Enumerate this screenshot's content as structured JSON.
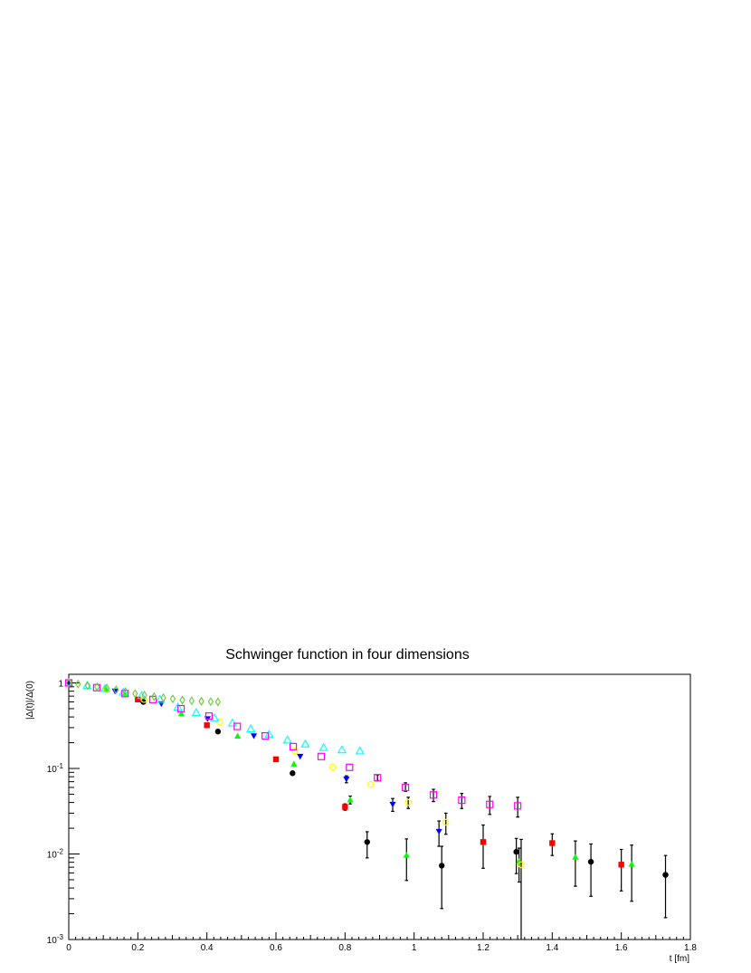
{
  "chart_data": {
    "type": "scatter",
    "title": "Schwinger function in four dimensions",
    "xlabel": "t [fm]",
    "ylabel": "|Δ(t)|/Δ(0)",
    "xlim": [
      0,
      1.8
    ],
    "ylim": [
      0.001,
      1.3
    ],
    "yscale": "log",
    "x_ticks": [
      "0",
      "0.2",
      "0.4",
      "0.6",
      "0.8",
      "1",
      "1.2",
      "1.4",
      "1.6",
      "1.8"
    ],
    "y_ticks": [
      {
        "mant": "1",
        "exp": ""
      },
      {
        "mant": "10",
        "exp": "-1"
      },
      {
        "mant": "10",
        "exp": "-2"
      },
      {
        "mant": "10",
        "exp": "-3"
      }
    ],
    "grid": false,
    "series": [
      {
        "marker": "circle-filled",
        "color": "#000000",
        "points": [
          {
            "x": 0.0,
            "y": 1.0
          },
          {
            "x": 0.216,
            "y": 0.6
          },
          {
            "x": 0.432,
            "y": 0.27
          },
          {
            "x": 0.648,
            "y": 0.088
          },
          {
            "x": 0.864,
            "y": 0.0138,
            "lo": 0.009,
            "hi": 0.0182
          },
          {
            "x": 1.08,
            "y": 0.0073,
            "lo": 0.0023,
            "hi": 0.0123
          },
          {
            "x": 1.296,
            "y": 0.0106,
            "lo": 0.0059,
            "hi": 0.0152
          },
          {
            "x": 1.512,
            "y": 0.0081,
            "lo": 0.0032,
            "hi": 0.0131
          },
          {
            "x": 1.728,
            "y": 0.0057,
            "lo": 0.0018,
            "hi": 0.0096
          }
        ]
      },
      {
        "marker": "square-filled",
        "color": "#ff0000",
        "points": [
          {
            "x": 0.0,
            "y": 1.0
          },
          {
            "x": 0.2,
            "y": 0.64
          },
          {
            "x": 0.4,
            "y": 0.32
          },
          {
            "x": 0.6,
            "y": 0.128
          },
          {
            "x": 0.8,
            "y": 0.0355,
            "lo": 0.0325,
            "hi": 0.0385
          },
          {
            "x": 1.2,
            "y": 0.0138,
            "lo": 0.0068,
            "hi": 0.0218
          },
          {
            "x": 1.4,
            "y": 0.0134,
            "lo": 0.0096,
            "hi": 0.0172
          },
          {
            "x": 1.6,
            "y": 0.0075,
            "lo": 0.0037,
            "hi": 0.0113
          }
        ]
      },
      {
        "marker": "triangle-up-filled",
        "color": "#00ff00",
        "points": [
          {
            "x": 0.0,
            "y": 1.0
          },
          {
            "x": 0.109,
            "y": 0.85
          },
          {
            "x": 0.163,
            "y": 0.75
          },
          {
            "x": 0.326,
            "y": 0.44
          },
          {
            "x": 0.489,
            "y": 0.24
          },
          {
            "x": 0.652,
            "y": 0.113
          },
          {
            "x": 0.815,
            "y": 0.043,
            "lo": 0.0385,
            "hi": 0.0475
          },
          {
            "x": 0.978,
            "y": 0.0097,
            "lo": 0.0049,
            "hi": 0.015
          },
          {
            "x": 1.304,
            "y": 0.0082,
            "lo": 0.0047,
            "hi": 0.0117
          },
          {
            "x": 1.467,
            "y": 0.0092,
            "lo": 0.0042,
            "hi": 0.0142
          },
          {
            "x": 1.63,
            "y": 0.0076,
            "lo": 0.0028,
            "hi": 0.0127
          }
        ]
      },
      {
        "marker": "triangle-down-filled",
        "color": "#0000ff",
        "points": [
          {
            "x": 0.0,
            "y": 1.0
          },
          {
            "x": 0.134,
            "y": 0.8
          },
          {
            "x": 0.268,
            "y": 0.57
          },
          {
            "x": 0.402,
            "y": 0.38
          },
          {
            "x": 0.536,
            "y": 0.24
          },
          {
            "x": 0.67,
            "y": 0.138
          },
          {
            "x": 0.804,
            "y": 0.075,
            "lo": 0.068,
            "hi": 0.082
          },
          {
            "x": 0.938,
            "y": 0.038,
            "lo": 0.0315,
            "hi": 0.0445
          },
          {
            "x": 1.072,
            "y": 0.0183,
            "lo": 0.0123,
            "hi": 0.0243
          }
        ]
      },
      {
        "marker": "circle-open",
        "color": "#ffff00",
        "points": [
          {
            "x": 0.0,
            "y": 1.0
          },
          {
            "x": 0.109,
            "y": 0.84
          },
          {
            "x": 0.218,
            "y": 0.64
          },
          {
            "x": 0.437,
            "y": 0.35
          },
          {
            "x": 0.655,
            "y": 0.16
          },
          {
            "x": 0.764,
            "y": 0.104
          },
          {
            "x": 0.874,
            "y": 0.065
          },
          {
            "x": 0.983,
            "y": 0.04,
            "lo": 0.034,
            "hi": 0.046
          },
          {
            "x": 1.092,
            "y": 0.0235,
            "lo": 0.017,
            "hi": 0.03
          },
          {
            "x": 1.31,
            "y": 0.0075,
            "lo": 0.0005,
            "hi": 0.0148
          }
        ]
      },
      {
        "marker": "triangle-up-open",
        "color": "#00ffff",
        "points": [
          {
            "x": 0.0,
            "y": 1.0
          },
          {
            "x": 0.053,
            "y": 0.93
          },
          {
            "x": 0.105,
            "y": 0.86
          },
          {
            "x": 0.158,
            "y": 0.78
          },
          {
            "x": 0.211,
            "y": 0.71
          },
          {
            "x": 0.264,
            "y": 0.64
          },
          {
            "x": 0.316,
            "y": 0.52
          },
          {
            "x": 0.369,
            "y": 0.45
          },
          {
            "x": 0.422,
            "y": 0.39
          },
          {
            "x": 0.474,
            "y": 0.34
          },
          {
            "x": 0.527,
            "y": 0.29
          },
          {
            "x": 0.58,
            "y": 0.25
          },
          {
            "x": 0.633,
            "y": 0.215
          },
          {
            "x": 0.685,
            "y": 0.193
          },
          {
            "x": 0.738,
            "y": 0.175
          },
          {
            "x": 0.791,
            "y": 0.165
          },
          {
            "x": 0.843,
            "y": 0.16
          }
        ]
      },
      {
        "marker": "square-open",
        "color": "#ff00ff",
        "points": [
          {
            "x": 0.0,
            "y": 1.0
          },
          {
            "x": 0.081,
            "y": 0.88
          },
          {
            "x": 0.163,
            "y": 0.75
          },
          {
            "x": 0.244,
            "y": 0.64
          },
          {
            "x": 0.325,
            "y": 0.5
          },
          {
            "x": 0.406,
            "y": 0.41
          },
          {
            "x": 0.488,
            "y": 0.31
          },
          {
            "x": 0.569,
            "y": 0.24
          },
          {
            "x": 0.65,
            "y": 0.18
          },
          {
            "x": 0.731,
            "y": 0.138
          },
          {
            "x": 0.813,
            "y": 0.103
          },
          {
            "x": 0.894,
            "y": 0.078,
            "lo": 0.072,
            "hi": 0.084
          },
          {
            "x": 0.975,
            "y": 0.06,
            "lo": 0.054,
            "hi": 0.068
          },
          {
            "x": 1.056,
            "y": 0.049,
            "lo": 0.041,
            "hi": 0.057
          },
          {
            "x": 1.138,
            "y": 0.0425,
            "lo": 0.034,
            "hi": 0.051
          },
          {
            "x": 1.219,
            "y": 0.038,
            "lo": 0.029,
            "hi": 0.047
          },
          {
            "x": 1.3,
            "y": 0.0365,
            "lo": 0.027,
            "hi": 0.046
          }
        ]
      },
      {
        "marker": "diamond-open",
        "color": "#66cc33",
        "points": [
          {
            "x": 0.0,
            "y": 1.0
          },
          {
            "x": 0.027,
            "y": 0.97
          },
          {
            "x": 0.055,
            "y": 0.93
          },
          {
            "x": 0.082,
            "y": 0.9
          },
          {
            "x": 0.11,
            "y": 0.87
          },
          {
            "x": 0.137,
            "y": 0.83
          },
          {
            "x": 0.164,
            "y": 0.79
          },
          {
            "x": 0.192,
            "y": 0.75
          },
          {
            "x": 0.219,
            "y": 0.72
          },
          {
            "x": 0.247,
            "y": 0.69
          },
          {
            "x": 0.274,
            "y": 0.67
          },
          {
            "x": 0.301,
            "y": 0.65
          },
          {
            "x": 0.329,
            "y": 0.63
          },
          {
            "x": 0.356,
            "y": 0.62
          },
          {
            "x": 0.384,
            "y": 0.61
          },
          {
            "x": 0.411,
            "y": 0.605
          },
          {
            "x": 0.432,
            "y": 0.6
          }
        ]
      }
    ]
  }
}
